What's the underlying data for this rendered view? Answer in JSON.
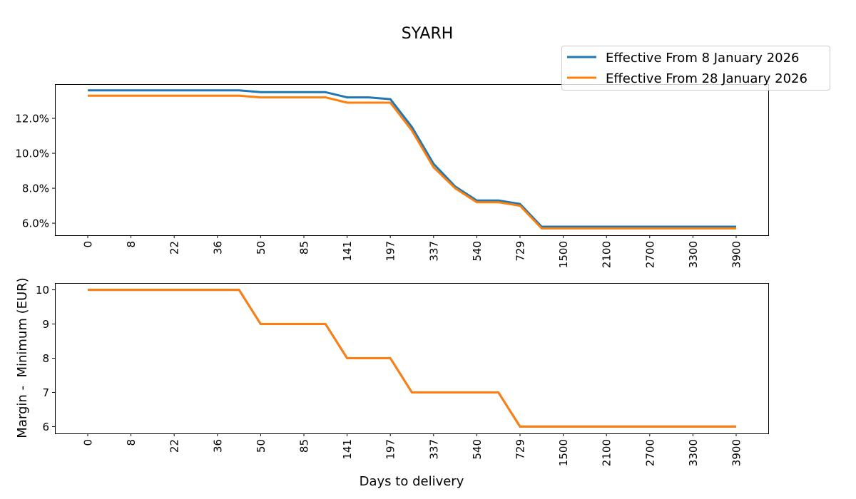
{
  "chart_data": [
    {
      "type": "line",
      "title": "SYARH",
      "xlabel": "",
      "ylabel": "",
      "x_tick_labels": [
        "0",
        "8",
        "22",
        "36",
        "50",
        "85",
        "141",
        "197",
        "337",
        "540",
        "729",
        "1500",
        "2100",
        "2700",
        "3300",
        "3900"
      ],
      "y_tick_labels": [
        "6.0%",
        "8.0%",
        "10.0%",
        "12.0%"
      ],
      "y_ticks": [
        6,
        8,
        10,
        12
      ],
      "ylim": [
        5.31,
        13.96
      ],
      "grid": false,
      "legend_position": "top-right",
      "series": [
        {
          "name": "Effective From 8 January 2026",
          "color": "#1f77b4",
          "values": [
            13.6,
            13.6,
            13.6,
            13.6,
            13.6,
            13.6,
            13.6,
            13.6,
            13.5,
            13.5,
            13.5,
            13.5,
            13.2,
            13.2,
            13.1,
            11.5,
            9.4,
            8.1,
            7.3,
            7.3,
            7.1,
            5.8,
            5.8,
            5.8,
            5.8,
            5.8,
            5.8,
            5.8,
            5.8,
            5.8,
            5.8
          ]
        },
        {
          "name": "Effective From 28 January 2026",
          "color": "#ff7f0e",
          "values": [
            13.3,
            13.3,
            13.3,
            13.3,
            13.3,
            13.3,
            13.3,
            13.3,
            13.2,
            13.2,
            13.2,
            13.2,
            12.9,
            12.9,
            12.9,
            11.3,
            9.2,
            8.0,
            7.2,
            7.2,
            7.0,
            5.7,
            5.7,
            5.7,
            5.7,
            5.7,
            5.7,
            5.7,
            5.7,
            5.7,
            5.7
          ]
        }
      ]
    },
    {
      "type": "line",
      "xlabel": "Days to delivery",
      "ylabel": "Margin -  Minimum (EUR)",
      "x_tick_labels": [
        "0",
        "8",
        "22",
        "36",
        "50",
        "85",
        "141",
        "197",
        "337",
        "540",
        "729",
        "1500",
        "2100",
        "2700",
        "3300",
        "3900"
      ],
      "y_tick_labels": [
        "6",
        "7",
        "8",
        "9",
        "10"
      ],
      "y_ticks": [
        6,
        7,
        8,
        9,
        10
      ],
      "ylim": [
        5.8,
        10.2
      ],
      "grid": false,
      "series": [
        {
          "color": "#1f77b4",
          "values": [
            10,
            10,
            10,
            10,
            10,
            10,
            10,
            10,
            9,
            9,
            9,
            9,
            8,
            8,
            8,
            7,
            7,
            7,
            7,
            7,
            6,
            6,
            6,
            6,
            6,
            6,
            6,
            6,
            6,
            6,
            6
          ]
        },
        {
          "color": "#ff7f0e",
          "values": [
            10,
            10,
            10,
            10,
            10,
            10,
            10,
            10,
            9,
            9,
            9,
            9,
            8,
            8,
            8,
            7,
            7,
            7,
            7,
            7,
            6,
            6,
            6,
            6,
            6,
            6,
            6,
            6,
            6,
            6,
            6
          ]
        }
      ]
    }
  ]
}
